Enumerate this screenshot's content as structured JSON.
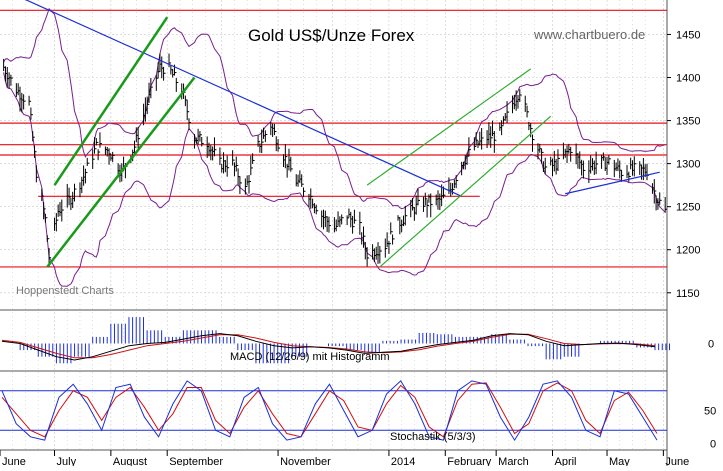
{
  "header": {
    "title": "Gold US$/Unze Forex",
    "watermark": "www.chartbuero.de",
    "source": "Hoppenstedt Charts"
  },
  "colors": {
    "background": "#ffffff",
    "grid": "#c8c8c8",
    "price": "#000000",
    "bollinger": "#7a1f8f",
    "resistance": "#e8101a",
    "trendline": "#1a2fd8",
    "channel_thick": "#1a9a1a",
    "channel_thin": "#2fae2f",
    "macd": "#000000",
    "macd_signal": "#d01010",
    "histogram": "#1a2fd8",
    "stoch_k": "#1a2fd8",
    "stoch_d": "#d01010",
    "stoch_levels": "#1a2fd8"
  },
  "x_axis": {
    "labels": [
      "June",
      "July",
      "August",
      "September",
      "November",
      "2014",
      "February",
      "March",
      "April",
      "May",
      "June"
    ]
  },
  "chart_data": [
    {
      "type": "line",
      "title": "Gold US$/Unze Forex",
      "note": "daily OHLC bars, Bollinger bands",
      "y_ticks": [
        1150,
        1200,
        1250,
        1300,
        1350,
        1400,
        1450
      ],
      "ylim": [
        1130,
        1490
      ],
      "horizontal_levels": [
        1478,
        1347,
        1322,
        1310,
        1262,
        1180
      ],
      "x_start": "2013-06-01",
      "x_end": "2014-06-03",
      "series": [
        {
          "role": "close",
          "points": [
            [
              "2013-06-03",
              1412
            ],
            [
              "2013-06-10",
              1386
            ],
            [
              "2013-06-17",
              1370
            ],
            [
              "2013-06-21",
              1290
            ],
            [
              "2013-06-26",
              1235
            ],
            [
              "2013-06-28",
              1192
            ],
            [
              "2013-07-03",
              1245
            ],
            [
              "2013-07-10",
              1260
            ],
            [
              "2013-07-17",
              1285
            ],
            [
              "2013-07-24",
              1320
            ],
            [
              "2013-07-31",
              1315
            ],
            [
              "2013-08-07",
              1290
            ],
            [
              "2013-08-14",
              1320
            ],
            [
              "2013-08-21",
              1370
            ],
            [
              "2013-08-28",
              1412
            ],
            [
              "2013-09-02",
              1410
            ],
            [
              "2013-09-09",
              1385
            ],
            [
              "2013-09-16",
              1330
            ],
            [
              "2013-09-23",
              1325
            ],
            [
              "2013-09-30",
              1300
            ],
            [
              "2013-10-07",
              1300
            ],
            [
              "2013-10-14",
              1270
            ],
            [
              "2013-10-21",
              1320
            ],
            [
              "2013-10-28",
              1345
            ],
            [
              "2013-11-04",
              1310
            ],
            [
              "2013-11-11",
              1280
            ],
            [
              "2013-11-18",
              1265
            ],
            [
              "2013-11-25",
              1240
            ],
            [
              "2013-12-02",
              1225
            ],
            [
              "2013-12-09",
              1240
            ],
            [
              "2013-12-16",
              1225
            ],
            [
              "2013-12-20",
              1195
            ],
            [
              "2013-12-30",
              1205
            ],
            [
              "2014-01-06",
              1230
            ],
            [
              "2014-01-13",
              1245
            ],
            [
              "2014-01-20",
              1255
            ],
            [
              "2014-01-27",
              1255
            ],
            [
              "2014-02-03",
              1265
            ],
            [
              "2014-02-10",
              1300
            ],
            [
              "2014-02-17",
              1320
            ],
            [
              "2014-02-24",
              1330
            ],
            [
              "2014-03-03",
              1335
            ],
            [
              "2014-03-10",
              1370
            ],
            [
              "2014-03-14",
              1385
            ],
            [
              "2014-03-21",
              1335
            ],
            [
              "2014-03-28",
              1295
            ],
            [
              "2014-04-04",
              1300
            ],
            [
              "2014-04-11",
              1318
            ],
            [
              "2014-04-18",
              1295
            ],
            [
              "2014-04-25",
              1300
            ],
            [
              "2014-05-02",
              1302
            ],
            [
              "2014-05-09",
              1290
            ],
            [
              "2014-05-16",
              1293
            ],
            [
              "2014-05-23",
              1292
            ],
            [
              "2014-05-28",
              1262
            ],
            [
              "2014-06-02",
              1245
            ]
          ]
        }
      ]
    },
    {
      "type": "line",
      "title": "MACD (12/26/9) mit Histogramm",
      "y_ticks": [
        0
      ],
      "ylim": [
        -1,
        1
      ],
      "series": [
        {
          "name": "MACD",
          "values": [
            0.1,
            0.0,
            -0.3,
            -0.6,
            -0.75,
            -0.6,
            -0.35,
            -0.1,
            0.0,
            0.05,
            0.2,
            0.35,
            0.45,
            0.35,
            0.1,
            -0.1,
            -0.2,
            -0.15,
            -0.2,
            -0.3,
            -0.45,
            -0.4,
            -0.35,
            -0.2,
            -0.05,
            0.05,
            0.15,
            0.35,
            0.45,
            0.4,
            0.1,
            -0.1,
            -0.05,
            0.0,
            0.02,
            -0.05,
            -0.15
          ]
        },
        {
          "name": "Signal",
          "values": [
            0.15,
            0.05,
            -0.2,
            -0.45,
            -0.65,
            -0.65,
            -0.5,
            -0.3,
            -0.1,
            0.0,
            0.1,
            0.25,
            0.4,
            0.4,
            0.25,
            0.05,
            -0.1,
            -0.15,
            -0.18,
            -0.25,
            -0.38,
            -0.42,
            -0.38,
            -0.28,
            -0.12,
            0.0,
            0.1,
            0.28,
            0.42,
            0.42,
            0.22,
            0.0,
            -0.05,
            -0.02,
            0.0,
            -0.02,
            -0.1
          ]
        }
      ]
    },
    {
      "type": "line",
      "title": "Stochastik (5/3/3)",
      "y_ticks": [
        0,
        50
      ],
      "ylim": [
        -10,
        110
      ],
      "levels": [
        80,
        20
      ],
      "series": [
        {
          "name": "%K",
          "values": [
            80,
            30,
            10,
            5,
            70,
            90,
            60,
            20,
            85,
            90,
            40,
            10,
            60,
            95,
            80,
            20,
            10,
            70,
            85,
            30,
            5,
            10,
            60,
            90,
            50,
            10,
            20,
            75,
            95,
            60,
            10,
            5,
            80,
            95,
            90,
            40,
            5,
            40,
            90,
            95,
            70,
            20,
            10,
            80,
            75,
            40,
            5
          ]
        },
        {
          "name": "%D",
          "values": [
            70,
            45,
            20,
            10,
            50,
            80,
            70,
            35,
            70,
            85,
            55,
            20,
            45,
            85,
            85,
            35,
            15,
            55,
            80,
            45,
            15,
            10,
            45,
            80,
            65,
            25,
            20,
            60,
            88,
            70,
            25,
            10,
            65,
            90,
            92,
            55,
            15,
            30,
            80,
            92,
            80,
            35,
            15,
            65,
            78,
            50,
            15
          ]
        }
      ]
    }
  ]
}
